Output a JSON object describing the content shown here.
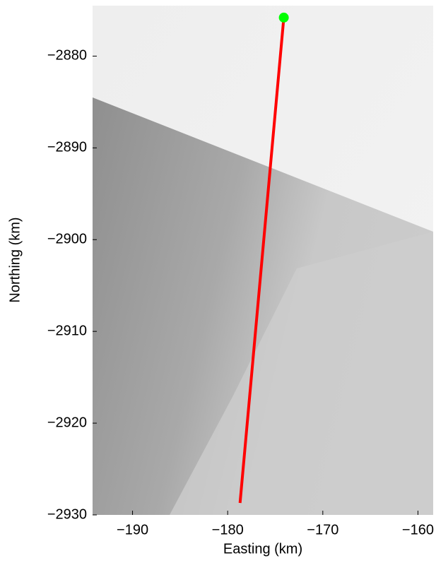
{
  "chart_data": {
    "type": "line",
    "xlabel": "Easting (km)",
    "ylabel": "Northing (km)",
    "xlim": [
      -194.2,
      -158.4
    ],
    "ylim": [
      -2930,
      -2874.5
    ],
    "xticks": [
      {
        "value": -190,
        "label": "−190"
      },
      {
        "value": -180,
        "label": "−180"
      },
      {
        "value": -170,
        "label": "−170"
      },
      {
        "value": -160,
        "label": "−160"
      }
    ],
    "yticks": [
      {
        "value": -2880,
        "label": "−2880"
      },
      {
        "value": -2890,
        "label": "−2890"
      },
      {
        "value": -2900,
        "label": "−2900"
      },
      {
        "value": -2910,
        "label": "−2910"
      },
      {
        "value": -2920,
        "label": "−2920"
      },
      {
        "value": -2930,
        "label": "−2930"
      }
    ],
    "series": [
      {
        "style": "line",
        "color": "#ff0000",
        "x": [
          -174.1,
          -178.7
        ],
        "values": [
          -2875.8,
          -2928.7
        ]
      },
      {
        "style": "marker",
        "color": "#00ff00",
        "x": [
          -174.1
        ],
        "values": [
          -2875.8
        ]
      }
    ]
  }
}
